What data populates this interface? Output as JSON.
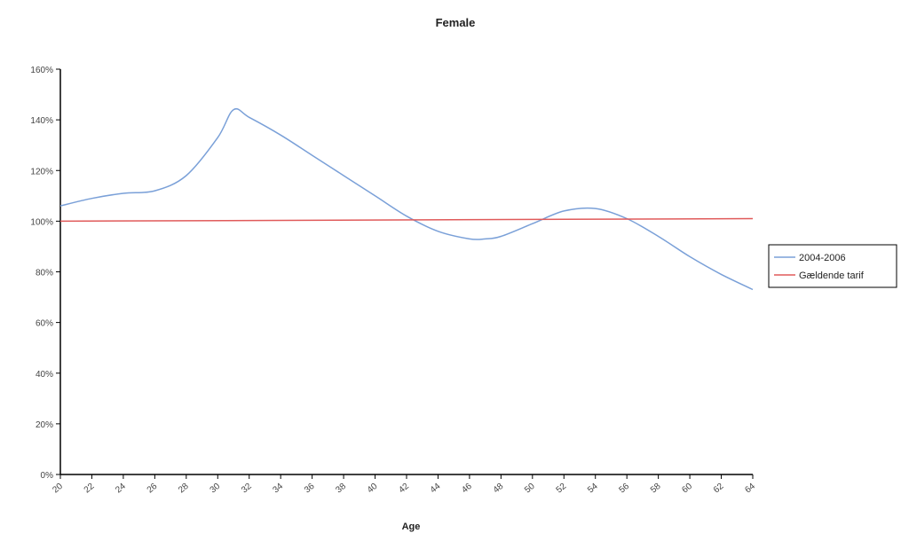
{
  "chart_data": {
    "type": "line",
    "title": "Female",
    "xlabel": "Age",
    "ylabel": "",
    "x": [
      20,
      22,
      24,
      26,
      28,
      30,
      32,
      34,
      36,
      38,
      40,
      42,
      44,
      46,
      48,
      50,
      52,
      54,
      56,
      58,
      60,
      62,
      64
    ],
    "x_tick_labels": [
      "20",
      "22",
      "24",
      "26",
      "28",
      "30",
      "32",
      "34",
      "36",
      "38",
      "40",
      "42",
      "44",
      "46",
      "48",
      "50",
      "52",
      "54",
      "56",
      "58",
      "60",
      "62",
      "64"
    ],
    "y_tick_labels": [
      "0%",
      "20%",
      "40%",
      "60%",
      "80%",
      "100%",
      "120%",
      "140%",
      "160%"
    ],
    "ylim": [
      0,
      160
    ],
    "xlim": [
      20,
      64
    ],
    "grid": false,
    "legend_position": "right",
    "series": [
      {
        "name": "2004-2006",
        "color": "#7aa0d8",
        "x": [
          20,
          22,
          24,
          26,
          28,
          30,
          31,
          32,
          34,
          36,
          38,
          40,
          42,
          44,
          46,
          47,
          48,
          50,
          52,
          54,
          56,
          58,
          60,
          62,
          64
        ],
        "values": [
          106,
          109,
          111,
          112,
          118,
          133,
          144,
          141,
          134,
          126,
          118,
          110,
          102,
          96,
          93,
          93,
          94,
          99,
          104,
          105,
          101,
          94,
          86,
          79,
          73
        ]
      },
      {
        "name": "Gældende tarif",
        "color": "#e05a5a",
        "x": [
          20,
          64
        ],
        "values": [
          100,
          101
        ]
      }
    ]
  }
}
